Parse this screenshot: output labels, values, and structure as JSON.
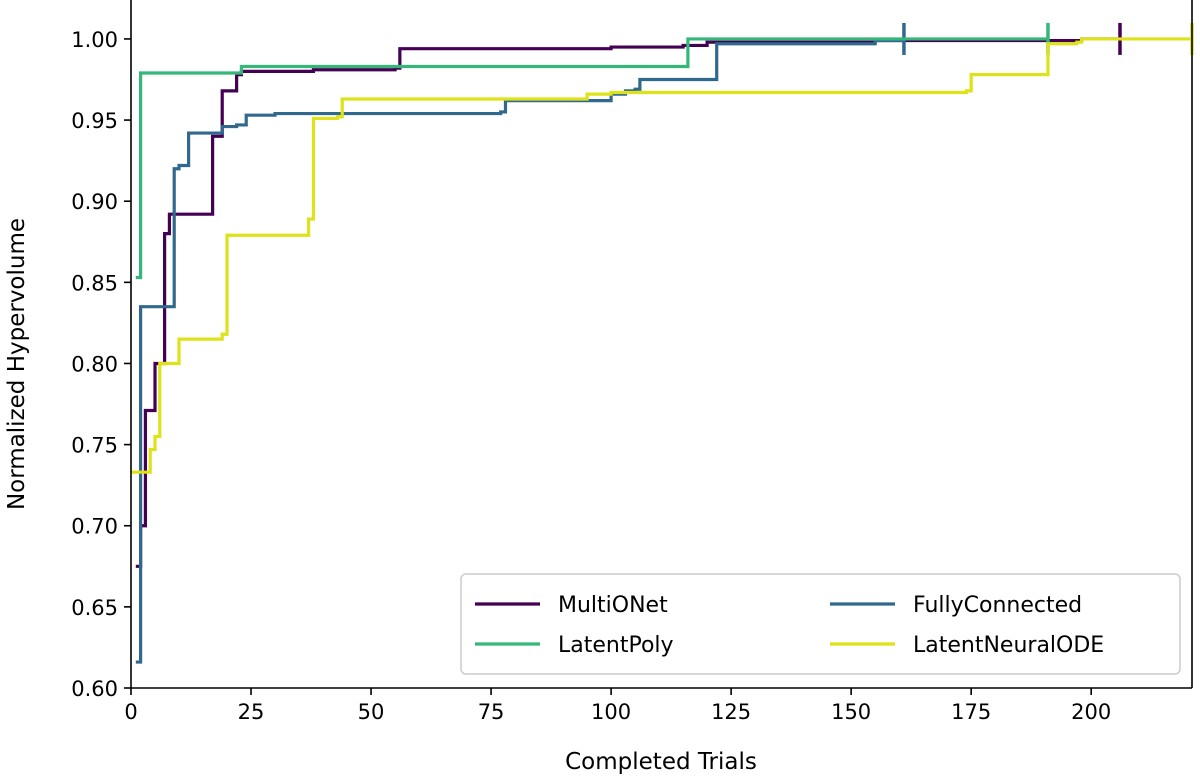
{
  "chart_data": {
    "type": "line",
    "step": "post",
    "xlabel": "Completed Trials",
    "ylabel": "Normalized Hypervolume",
    "xlim": [
      0,
      221
    ],
    "ylim": [
      0.6,
      1.024
    ],
    "xticks": [
      0,
      25,
      50,
      75,
      100,
      125,
      150,
      175,
      200
    ],
    "yticks": [
      "0.60",
      "0.65",
      "0.70",
      "0.75",
      "0.80",
      "0.85",
      "0.90",
      "0.95",
      "1.00"
    ],
    "grid": false,
    "legend_position": "lower-right",
    "end_markers": "vertical-tick",
    "series": [
      {
        "name": "MultiONet",
        "color": "#440154",
        "points": [
          [
            1,
            0.675
          ],
          [
            2,
            0.7
          ],
          [
            3,
            0.771
          ],
          [
            4,
            0.771
          ],
          [
            5,
            0.8
          ],
          [
            6,
            0.8
          ],
          [
            7,
            0.88
          ],
          [
            8,
            0.892
          ],
          [
            15,
            0.892
          ],
          [
            17,
            0.94
          ],
          [
            19,
            0.968
          ],
          [
            21,
            0.968
          ],
          [
            22,
            0.978
          ],
          [
            23,
            0.98
          ],
          [
            37,
            0.98
          ],
          [
            38,
            0.981
          ],
          [
            55,
            0.982
          ],
          [
            56,
            0.994
          ],
          [
            100,
            0.995
          ],
          [
            115,
            0.996
          ],
          [
            120,
            0.998
          ],
          [
            155,
            0.999
          ],
          [
            198,
            1.0
          ],
          [
            206,
            1.0
          ]
        ]
      },
      {
        "name": "FullyConnected",
        "color": "#31688e",
        "points": [
          [
            1,
            0.616
          ],
          [
            2,
            0.835
          ],
          [
            8,
            0.835
          ],
          [
            9,
            0.92
          ],
          [
            10,
            0.922
          ],
          [
            11,
            0.922
          ],
          [
            12,
            0.942
          ],
          [
            18,
            0.942
          ],
          [
            19,
            0.946
          ],
          [
            22,
            0.947
          ],
          [
            24,
            0.953
          ],
          [
            30,
            0.954
          ],
          [
            77,
            0.955
          ],
          [
            78,
            0.962
          ],
          [
            95,
            0.962
          ],
          [
            100,
            0.966
          ],
          [
            103,
            0.968
          ],
          [
            105,
            0.969
          ],
          [
            106,
            0.975
          ],
          [
            120,
            0.975
          ],
          [
            122,
            0.997
          ],
          [
            155,
            0.999
          ],
          [
            161,
            1.0
          ]
        ]
      },
      {
        "name": "LatentPoly",
        "color": "#35b779",
        "points": [
          [
            1,
            0.853
          ],
          [
            2,
            0.979
          ],
          [
            22,
            0.979
          ],
          [
            23,
            0.983
          ],
          [
            115,
            0.983
          ],
          [
            116,
            1.0
          ],
          [
            191,
            1.0
          ]
        ]
      },
      {
        "name": "LatentNeuralODE",
        "color": "#dde318",
        "points": [
          [
            0,
            0.733
          ],
          [
            3,
            0.733
          ],
          [
            4,
            0.747
          ],
          [
            5,
            0.755
          ],
          [
            6,
            0.8
          ],
          [
            9,
            0.8
          ],
          [
            10,
            0.815
          ],
          [
            17,
            0.815
          ],
          [
            19,
            0.818
          ],
          [
            20,
            0.879
          ],
          [
            36,
            0.879
          ],
          [
            37,
            0.889
          ],
          [
            38,
            0.951
          ],
          [
            43,
            0.952
          ],
          [
            44,
            0.963
          ],
          [
            95,
            0.966
          ],
          [
            100,
            0.967
          ],
          [
            174,
            0.968
          ],
          [
            175,
            0.978
          ],
          [
            190,
            0.978
          ],
          [
            191,
            0.997
          ],
          [
            197,
            0.998
          ],
          [
            198,
            1.0
          ],
          [
            221,
            1.0
          ]
        ]
      }
    ]
  }
}
